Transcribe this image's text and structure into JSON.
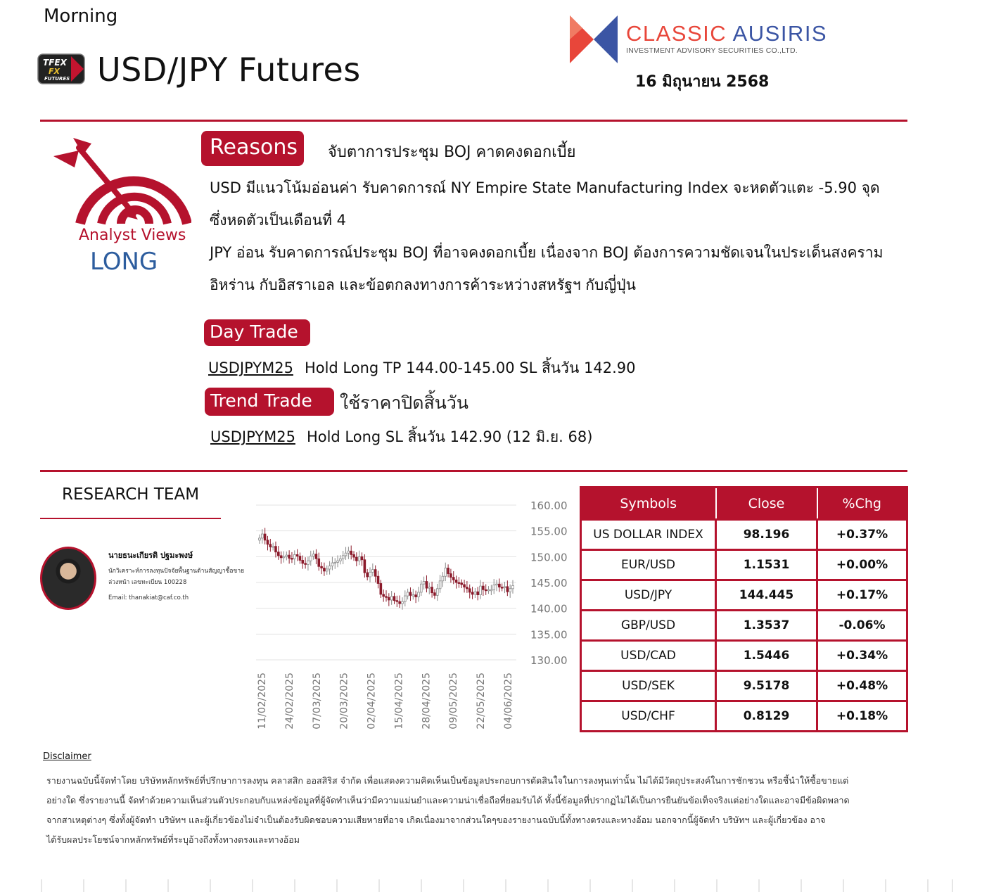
{
  "header": {
    "session": "Morning",
    "title": "USD/JPY Futures",
    "date": "16 มิถุนายน 2568",
    "tfex_logo": [
      "TFEX",
      "FX",
      "FUTURES"
    ]
  },
  "brand": {
    "name_part1": "CLASSIC",
    "name_part2": "AUSIRIS",
    "subtitle": "INVESTMENT ADVISORY SECURITIES CO.,LTD.",
    "colors": {
      "red": "#e8463a",
      "blue": "#3b55a4",
      "accent": "#b5122d"
    }
  },
  "analyst_view": {
    "label": "Analyst Views",
    "stance": "LONG",
    "icon": "target-arrow-icon"
  },
  "reasons": {
    "label": "Reasons",
    "headline": "จับตาการประชุม BOJ คาดคงดอกเบี้ย",
    "paragraphs": [
      "USD มีแนวโน้มอ่อนค่า รับคาดการณ์ NY Empire State Manufacturing Index จะหดตัวแตะ -5.90 จุด ซึ่งหดตัวเป็นเดือนที่ 4",
      "JPY อ่อน รับคาดการณ์ประชุม BOJ ที่อาจคงดอกเบี้ย เนื่องจาก BOJ ต้องการความชัดเจนในประเด็นสงครามอิหร่าน กับอิสราเอล และข้อตกลงทางการค้าระหว่างสหรัฐฯ กับญี่ปุ่น"
    ]
  },
  "day_trade": {
    "label": "Day Trade",
    "symbol": "USDJPYM25",
    "detail": "Hold Long TP 144.00-145.00  SL สิ้นวัน 142.90"
  },
  "trend_trade": {
    "label": "Trend Trade",
    "note": "ใช้ราคาปิดสิ้นวัน",
    "symbol": "USDJPYM25",
    "detail": "Hold Long SL สิ้นวัน 142.90 (12 มิ.ย. 68)"
  },
  "research_team": {
    "heading": "RESEARCH TEAM",
    "name": "นายธนะเกียรติ ปฐมะพงษ์",
    "desc": "นักวิเคราะห์การลงทุนปัจจัยพื้นฐานด้านสัญญาซื้อขายล่วงหน้า เลขทะเบียน 100228",
    "email": "Email: thanakiat@caf.co.th"
  },
  "chart_data": {
    "type": "candlestick",
    "y_ticks": [
      "160.00",
      "155.00",
      "150.00",
      "145.00",
      "140.00",
      "135.00",
      "130.00"
    ],
    "ylim": [
      130,
      160
    ],
    "x_ticks": [
      "11/02/2025",
      "24/02/2025",
      "07/03/2025",
      "20/03/2025",
      "02/04/2025",
      "15/04/2025",
      "28/04/2025",
      "09/05/2025",
      "22/05/2025",
      "04/06/2025"
    ],
    "close": [
      153.6,
      154.4,
      153.2,
      152.4,
      151.9,
      152.0,
      150.9,
      150.2,
      149.8,
      150.0,
      150.3,
      149.7,
      149.6,
      150.4,
      150.1,
      149.3,
      148.7,
      148.5,
      149.2,
      150.1,
      150.5,
      149.6,
      148.1,
      147.8,
      147.2,
      147.6,
      148.2,
      148.8,
      148.9,
      149.2,
      149.6,
      150.2,
      150.7,
      151.1,
      150.4,
      149.9,
      149.2,
      150.0,
      149.4,
      146.9,
      146.1,
      147.0,
      147.5,
      146.2,
      144.8,
      142.7,
      142.3,
      142.1,
      141.6,
      142.3,
      141.5,
      141.3,
      140.9,
      141.3,
      142.4,
      143.1,
      142.5,
      142.6,
      142.2,
      143.1,
      144.7,
      145.2,
      143.9,
      144.1,
      143.0,
      142.5,
      143.8,
      145.3,
      146.2,
      147.8,
      146.7,
      146.0,
      145.5,
      145.0,
      144.9,
      144.6,
      144.1,
      143.8,
      143.1,
      142.7,
      143.2,
      142.6,
      144.3,
      143.6,
      143.5,
      143.6,
      143.6,
      144.5,
      144.7,
      144.1,
      144.0,
      144.2,
      143.2,
      143.8,
      144.4
    ]
  },
  "market_table": {
    "headers": [
      "Symbols",
      "Close",
      "%Chg"
    ],
    "rows": [
      {
        "symbol": "US DOLLAR INDEX",
        "close": "98.196",
        "chg": "+0.37%"
      },
      {
        "symbol": "EUR/USD",
        "close": "1.1531",
        "chg": "+0.00%"
      },
      {
        "symbol": "USD/JPY",
        "close": "144.445",
        "chg": "+0.17%"
      },
      {
        "symbol": "GBP/USD",
        "close": "1.3537",
        "chg": "-0.06%"
      },
      {
        "symbol": "USD/CAD",
        "close": "1.5446",
        "chg": "+0.34%"
      },
      {
        "symbol": "USD/SEK",
        "close": "9.5178",
        "chg": "+0.48%"
      },
      {
        "symbol": "USD/CHF",
        "close": "0.8129",
        "chg": "+0.18%"
      }
    ]
  },
  "disclaimer": {
    "title": "Disclaimer",
    "lines": [
      "รายงานฉบับนี้จัดทำโดย บริษัทหลักทรัพย์ที่ปรึกษาการลงทุน คลาสสิก ออสสิริส จำกัด เพื่อแสดงความคิดเห็นเป็นข้อมูลประกอบการตัดสินใจในการลงทุนเท่านั้น ไม่ได้มีวัตถุประสงค์ในการชักชวน หรือชี้นำให้ซื้อขายแต่",
      "อย่างใด ซึ่งรายงานนี้ จัดทำด้วยความเห็นส่วนตัวประกอบกับแหล่งข้อมูลที่ผู้จัดทำเห็นว่ามีความแม่นยำและความน่าเชื่อถือที่ยอมรับได้ ทั้งนี้ข้อมูลที่ปรากฏไม่ได้เป็นการยืนยันข้อเท็จจริงแต่อย่างใดและอาจมีข้อผิดพลาด",
      "จากสาเหตุต่างๆ ซึ่งทั้งผู้จัดทำ บริษัทฯ และผู้เกี่ยวข้องไม่จำเป็นต้องรับผิดชอบความเสียหายที่อาจ เกิดเนื่องมาจากส่วนใดๆของรายงานฉบับนี้ทั้งทางตรงและทางอ้อม นอกจากนี้ผู้จัดทำ บริษัทฯ และผู้เกี่ยวข้อง อาจ",
      "ได้รับผลประโยชน์จากหลักทรัพย์ที่ระบุอ้างถึงทั้งทางตรงและทางอ้อม"
    ]
  }
}
